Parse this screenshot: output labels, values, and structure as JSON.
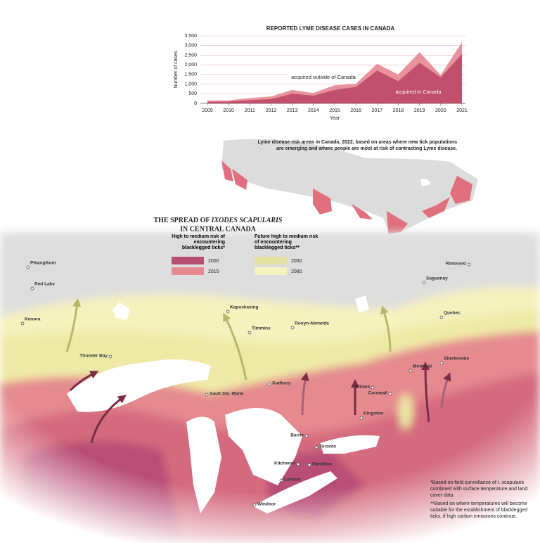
{
  "chart_data": {
    "type": "area",
    "title": "REPORTED LYME DISEASE CASES IN CANADA",
    "x_label": "Year",
    "y_label": "Number of cases",
    "x": [
      2009,
      2010,
      2011,
      2012,
      2013,
      2014,
      2015,
      2016,
      2017,
      2018,
      2019,
      2020,
      2021
    ],
    "xlim": [
      2009,
      2021
    ],
    "xticks": [
      2009,
      2010,
      2011,
      2012,
      2013,
      2014,
      2015,
      2016,
      2017,
      2018,
      2019,
      2020,
      2021
    ],
    "ylim": [
      0,
      3500
    ],
    "yticks": [
      0,
      500,
      {
        "value": 1000,
        "label": "1,000"
      },
      {
        "value": 1500,
        "label": "1,500"
      },
      {
        "value": 2000,
        "label": "2,000"
      },
      {
        "value": 2500,
        "label": "2,500"
      },
      {
        "value": 3000,
        "label": "3,000"
      },
      {
        "value": 3500,
        "label": "3,500"
      }
    ],
    "stacked": true,
    "grid": true,
    "series": [
      {
        "name": "acquired in Canada",
        "color": "#c0506e",
        "values": [
          80,
          90,
          170,
          220,
          500,
          400,
          700,
          850,
          1700,
          1150,
          2100,
          1350,
          2550
        ]
      },
      {
        "name": "acquired outside of Canada",
        "color": "#e8929c",
        "values": [
          50,
          50,
          90,
          120,
          180,
          120,
          220,
          140,
          330,
          330,
          530,
          90,
          590
        ]
      }
    ]
  },
  "map": {
    "caption": "Lyme disease risk areas in Canada, 2022, based on areas where new tick populations are emerging and where people are most at risk of contracting Lyme disease.",
    "title_start": "THE SPREAD OF",
    "title_italic": "IXODES SCAPULARIS",
    "title_end": "IN CENTRAL CANADA",
    "legend": [
      {
        "heading": "High to medium risk of encountering blacklegged ticks*",
        "items": [
          {
            "label": "2000",
            "color": "#b84e74"
          },
          {
            "label": "2015",
            "color": "#e58a8f"
          }
        ]
      },
      {
        "heading": "Future high to medium risk of encountering blacklegged ticks**",
        "items": [
          {
            "label": "2050",
            "color": "#e4e0a0"
          },
          {
            "label": "2080",
            "color": "#f6f2bd"
          }
        ]
      }
    ],
    "cities": [
      "Pikangikum",
      "Red Lake",
      "Kenora",
      "Thunder Bay",
      "Sault Ste. Marie",
      "Kapuskasing",
      "Timmins",
      "Rouyn-Noranda",
      "Sudbury",
      "Saguenay",
      "Rimouski",
      "Quebec",
      "Montreal",
      "Sherbrooke",
      "Ottawa",
      "Cornwall",
      "Kingston",
      "Barrie",
      "Toronto",
      "Kitchener",
      "Hamilton",
      "London",
      "Windsor"
    ],
    "footnotes": [
      "*Based on field surveillance of I. scapularis combined with surface temperature and land cover data",
      "**Based on where temperatures will become suitable for the establishment of blacklegged ticks, if high carbon emissions continue."
    ]
  }
}
